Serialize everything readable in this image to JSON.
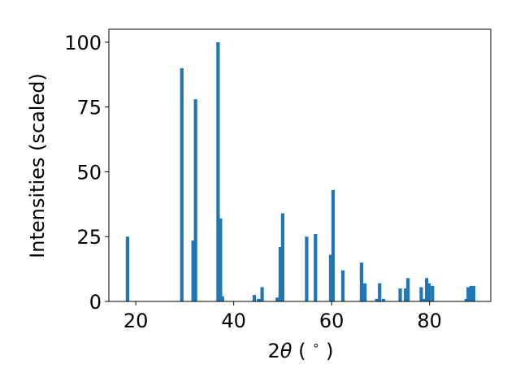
{
  "chart_data": {
    "type": "bar",
    "ylabel": "Intensities (scaled)",
    "xlabel_prefix": "2",
    "xlabel_symbol": "θ",
    "xlabel_suffix": " ( ",
    "xlabel_degree": "∘",
    "xlabel_close": " )",
    "xlim": [
      14.5,
      92.5
    ],
    "ylim": [
      0,
      105
    ],
    "x_ticks": [
      20,
      40,
      60,
      80
    ],
    "y_ticks": [
      0,
      25,
      50,
      75,
      100
    ],
    "bar_color": "#1f77b4",
    "grid": false,
    "bars": [
      {
        "x": 18.3,
        "y": 25
      },
      {
        "x": 29.4,
        "y": 90
      },
      {
        "x": 31.7,
        "y": 23.5
      },
      {
        "x": 32.2,
        "y": 78
      },
      {
        "x": 36.8,
        "y": 100
      },
      {
        "x": 37.3,
        "y": 32
      },
      {
        "x": 37.7,
        "y": 2
      },
      {
        "x": 44.2,
        "y": 2.5
      },
      {
        "x": 45.1,
        "y": 1
      },
      {
        "x": 45.8,
        "y": 5.5
      },
      {
        "x": 48.9,
        "y": 1.5
      },
      {
        "x": 49.5,
        "y": 21
      },
      {
        "x": 50.0,
        "y": 34
      },
      {
        "x": 54.9,
        "y": 25
      },
      {
        "x": 56.7,
        "y": 26
      },
      {
        "x": 59.8,
        "y": 18
      },
      {
        "x": 60.3,
        "y": 43
      },
      {
        "x": 62.3,
        "y": 12
      },
      {
        "x": 66.1,
        "y": 15
      },
      {
        "x": 66.8,
        "y": 7
      },
      {
        "x": 69.2,
        "y": 1
      },
      {
        "x": 69.8,
        "y": 7
      },
      {
        "x": 70.6,
        "y": 1
      },
      {
        "x": 74.0,
        "y": 5
      },
      {
        "x": 75.1,
        "y": 5
      },
      {
        "x": 75.6,
        "y": 9
      },
      {
        "x": 78.3,
        "y": 5.5
      },
      {
        "x": 78.8,
        "y": 1
      },
      {
        "x": 79.4,
        "y": 9
      },
      {
        "x": 79.9,
        "y": 7
      },
      {
        "x": 80.6,
        "y": 6
      },
      {
        "x": 87.5,
        "y": 1
      },
      {
        "x": 87.9,
        "y": 5.5
      },
      {
        "x": 88.5,
        "y": 6
      },
      {
        "x": 89.0,
        "y": 6
      }
    ]
  }
}
